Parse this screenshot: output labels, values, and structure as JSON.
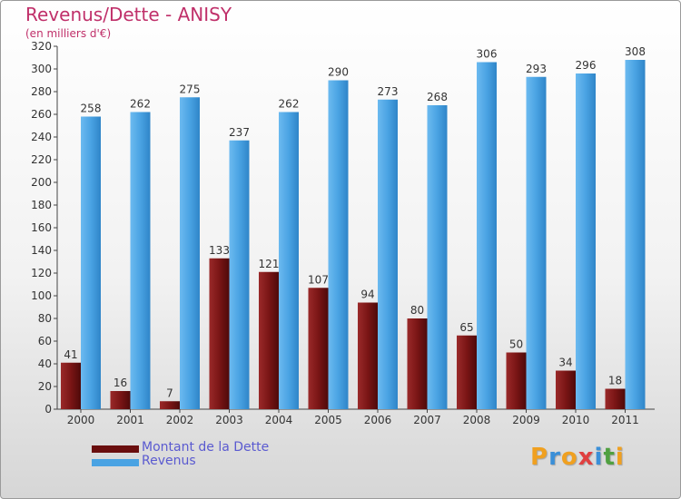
{
  "chart_data": {
    "type": "bar",
    "title": "Revenus/Dette - ANISY",
    "subtitle": "(en milliers d'€)",
    "categories": [
      "2000",
      "2001",
      "2002",
      "2003",
      "2004",
      "2005",
      "2006",
      "2007",
      "2008",
      "2009",
      "2010",
      "2011"
    ],
    "series": [
      {
        "name": "Montant de la Dette",
        "color": "#7a1a1a",
        "values": [
          41,
          16,
          7,
          133,
          121,
          107,
          94,
          80,
          65,
          50,
          34,
          18
        ]
      },
      {
        "name": "Revenus",
        "color": "#4aa3e3",
        "values": [
          258,
          262,
          275,
          237,
          262,
          290,
          273,
          268,
          306,
          293,
          296,
          308
        ]
      }
    ],
    "ylim": [
      0,
      320
    ],
    "yticks": [
      0,
      20,
      40,
      60,
      80,
      100,
      120,
      140,
      160,
      180,
      200,
      220,
      240,
      260,
      280,
      300,
      320
    ],
    "grid": false,
    "legend_position": "bottom-left"
  },
  "brand": {
    "letters": [
      "P",
      "r",
      "o",
      "x",
      "i",
      "t",
      "i"
    ],
    "colors": [
      "#f0a020",
      "#3a8fd8",
      "#f0a020",
      "#e04040",
      "#3a8fd8",
      "#50a040",
      "#f0a020"
    ]
  }
}
